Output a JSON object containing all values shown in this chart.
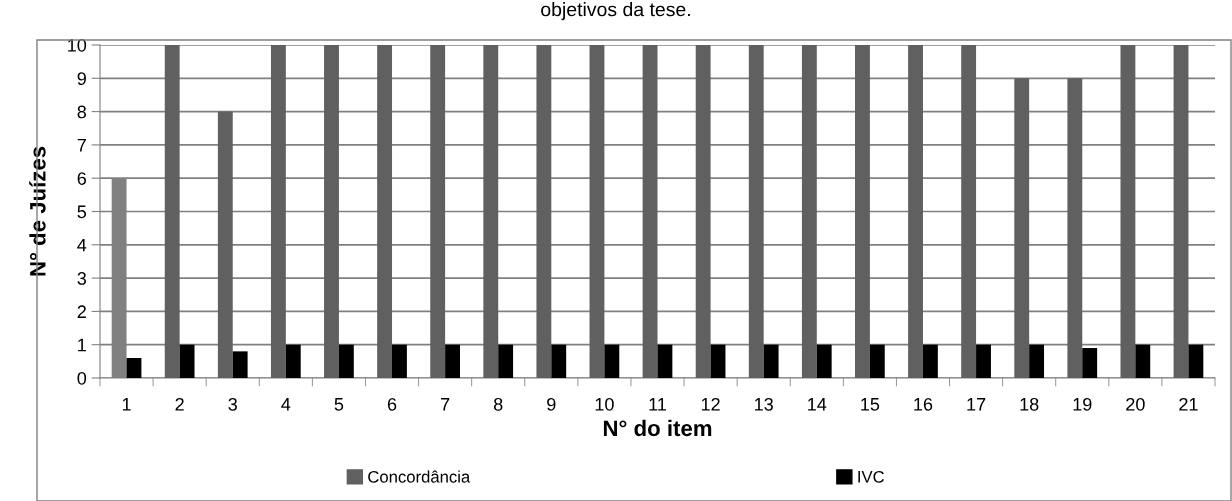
{
  "chart_data": {
    "type": "bar",
    "title": "objetivos da tese.",
    "xlabel": "N° do item",
    "ylabel": "N° de Juízes",
    "categories": [
      "1",
      "2",
      "3",
      "4",
      "5",
      "6",
      "7",
      "8",
      "9",
      "10",
      "11",
      "12",
      "13",
      "14",
      "15",
      "16",
      "17",
      "18",
      "19",
      "20",
      "21"
    ],
    "series": [
      {
        "name": "Concordância",
        "color": "#606060",
        "colors": [
          "#808080",
          "#606060",
          "#606060",
          "#606060",
          "#606060",
          "#606060",
          "#606060",
          "#606060",
          "#606060",
          "#606060",
          "#606060",
          "#606060",
          "#606060",
          "#606060",
          "#606060",
          "#606060",
          "#606060",
          "#606060",
          "#606060",
          "#606060",
          "#606060"
        ],
        "values": [
          6,
          10,
          8,
          10,
          10,
          10,
          10,
          10,
          10,
          10,
          10,
          10,
          10,
          10,
          10,
          10,
          10,
          9,
          9,
          10,
          10
        ]
      },
      {
        "name": "IVC",
        "color": "#000000",
        "values": [
          0.6,
          1,
          0.8,
          1,
          1,
          1,
          1,
          1,
          1,
          1,
          1,
          1,
          1,
          1,
          1,
          1,
          1,
          1,
          0.9,
          1,
          1
        ]
      }
    ],
    "ylim": [
      0,
      10
    ],
    "yticks": [
      0,
      1,
      2,
      3,
      4,
      5,
      6,
      7,
      8,
      9,
      10
    ],
    "grid": "y",
    "legend": "bottom"
  }
}
